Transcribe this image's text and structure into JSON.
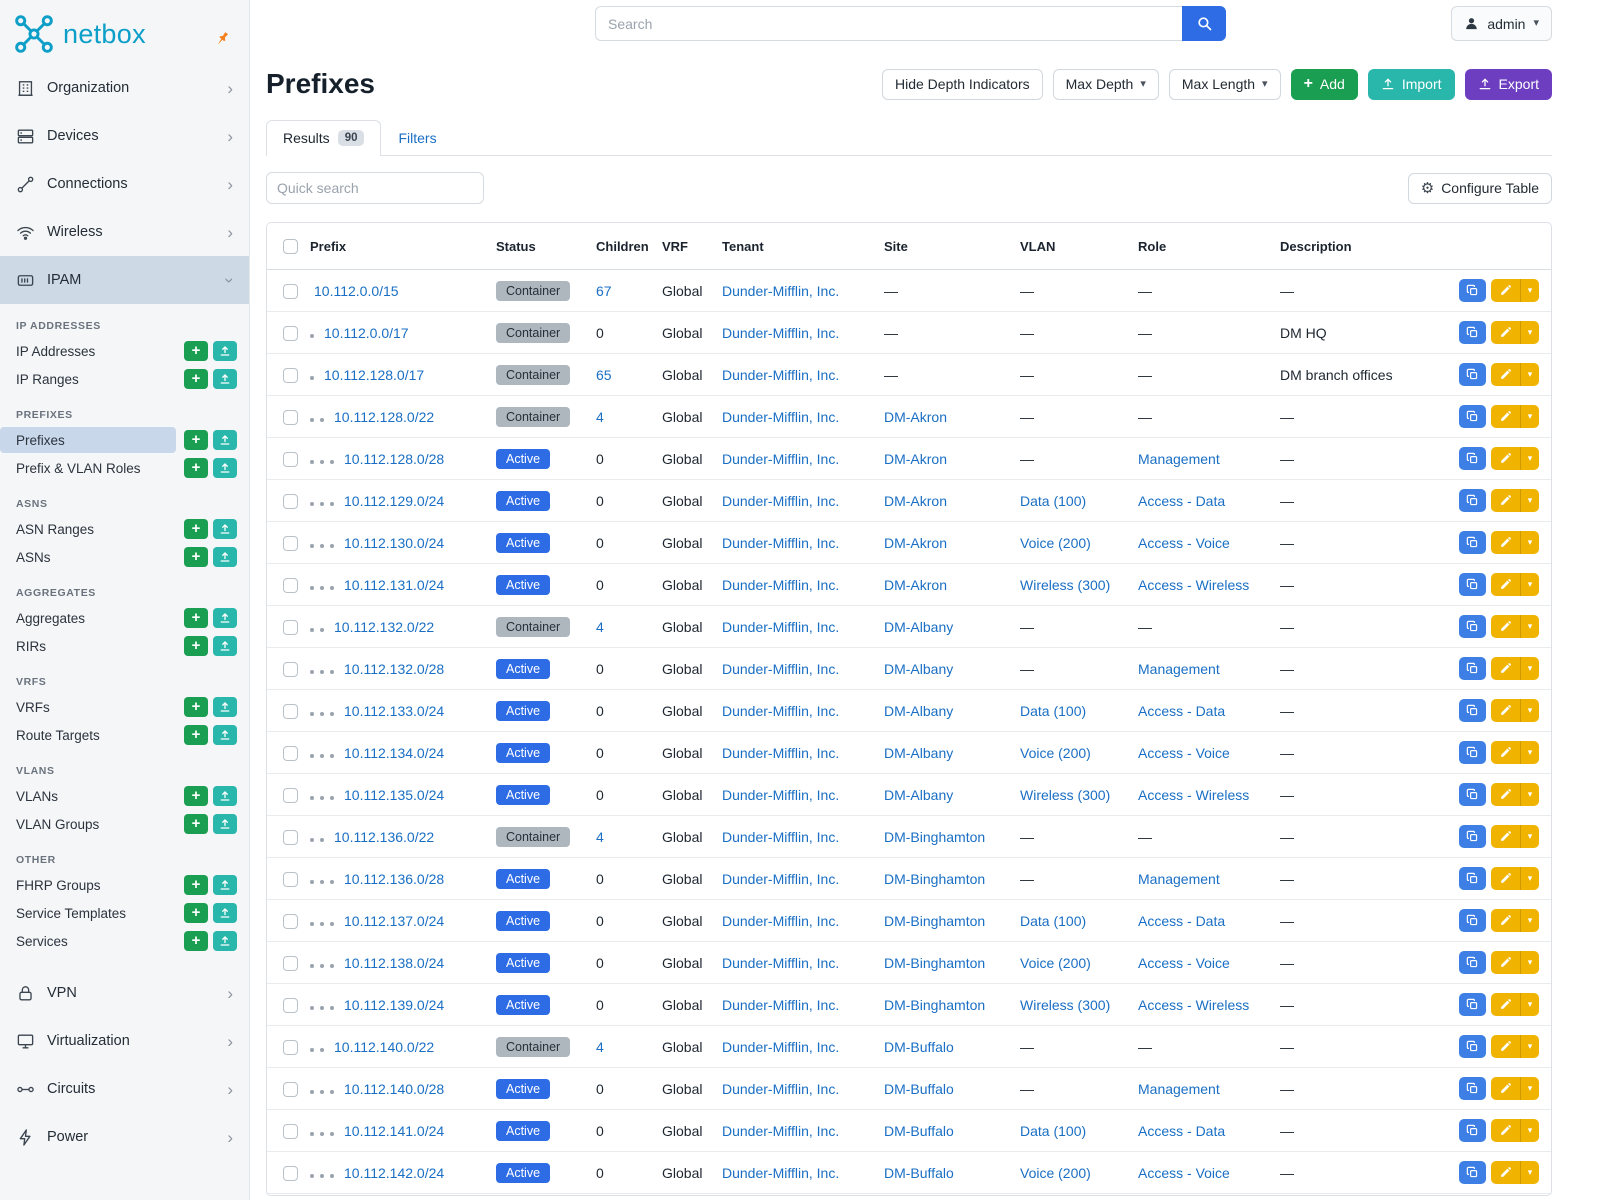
{
  "icons": {
    "caret-down-icon": "▾",
    "chevron-right-icon": "›",
    "plus-icon": "+",
    "gear-icon": "⚙",
    "search-icon": "svg-magnifier",
    "user-icon": "svg-person",
    "pin-icon": "svg-pushpin",
    "upload-icon": "svg-upload-arrow",
    "copy-icon": "svg-copy-squares",
    "edit-icon": "svg-pencil",
    "netbox-logo-icon": "svg-network-nodes"
  },
  "colors": {
    "brand_teal": "#0e9fc9",
    "primary_blue": "#2d6ce5",
    "link_blue": "#1a6fc4",
    "container_badge_gray": "#aeb6be",
    "active_badge_blue": "#2d6ce5",
    "add_green": "#1a9e52",
    "import_teal": "#29b6ab",
    "export_purple": "#6d3fc0",
    "edit_yellow": "#f0b400",
    "sidebar_highlight": "#cdd9e5",
    "pin_orange": "#f48120"
  },
  "topbar": {
    "search_placeholder": "Search",
    "user_label": "admin"
  },
  "sidebar": {
    "brand": "netbox",
    "menu": [
      {
        "label": "Organization",
        "icon": "building-icon"
      },
      {
        "label": "Devices",
        "icon": "devices-icon"
      },
      {
        "label": "Connections",
        "icon": "connections-icon"
      },
      {
        "label": "Wireless",
        "icon": "wifi-icon"
      },
      {
        "label": "IPAM",
        "icon": "ipam-icon",
        "active": true,
        "expanded": true
      }
    ],
    "ipam_sections": [
      {
        "heading": "IP ADDRESSES",
        "links": [
          {
            "label": "IP Addresses"
          },
          {
            "label": "IP Ranges"
          }
        ]
      },
      {
        "heading": "PREFIXES",
        "links": [
          {
            "label": "Prefixes",
            "active": true
          },
          {
            "label": "Prefix & VLAN Roles"
          }
        ]
      },
      {
        "heading": "ASNS",
        "links": [
          {
            "label": "ASN Ranges"
          },
          {
            "label": "ASNs"
          }
        ]
      },
      {
        "heading": "AGGREGATES",
        "links": [
          {
            "label": "Aggregates"
          },
          {
            "label": "RIRs"
          }
        ]
      },
      {
        "heading": "VRFS",
        "links": [
          {
            "label": "VRFs"
          },
          {
            "label": "Route Targets"
          }
        ]
      },
      {
        "heading": "VLANS",
        "links": [
          {
            "label": "VLANs"
          },
          {
            "label": "VLAN Groups"
          }
        ]
      },
      {
        "heading": "OTHER",
        "links": [
          {
            "label": "FHRP Groups"
          },
          {
            "label": "Service Templates"
          },
          {
            "label": "Services"
          }
        ]
      }
    ],
    "menu_bottom": [
      {
        "label": "VPN",
        "icon": "vpn-icon"
      },
      {
        "label": "Virtualization",
        "icon": "virtualization-icon"
      },
      {
        "label": "Circuits",
        "icon": "circuits-icon"
      },
      {
        "label": "Power",
        "icon": "power-icon"
      }
    ]
  },
  "page": {
    "title": "Prefixes",
    "actions": {
      "hide_depth": "Hide Depth Indicators",
      "max_depth": "Max Depth",
      "max_length": "Max Length",
      "add": "Add",
      "import": "Import",
      "export": "Export"
    },
    "tabs": [
      {
        "label": "Results",
        "badge": "90",
        "active": true
      },
      {
        "label": "Filters",
        "active": false
      }
    ],
    "quick_search_placeholder": "Quick search",
    "configure_table": "Configure Table"
  },
  "table": {
    "columns": [
      "Prefix",
      "Status",
      "Children",
      "VRF",
      "Tenant",
      "Site",
      "VLAN",
      "Role",
      "Description"
    ],
    "rows": [
      {
        "depth": 0,
        "prefix": "10.112.0.0/15",
        "status": "Container",
        "children": "67",
        "vrf": "Global",
        "tenant": "Dunder-Mifflin, Inc.",
        "site": "—",
        "vlan": "—",
        "role": "—",
        "description": "—"
      },
      {
        "depth": 1,
        "prefix": "10.112.0.0/17",
        "status": "Container",
        "children": "0",
        "vrf": "Global",
        "tenant": "Dunder-Mifflin, Inc.",
        "site": "—",
        "vlan": "—",
        "role": "—",
        "description": "DM HQ"
      },
      {
        "depth": 1,
        "prefix": "10.112.128.0/17",
        "status": "Container",
        "children": "65",
        "vrf": "Global",
        "tenant": "Dunder-Mifflin, Inc.",
        "site": "—",
        "vlan": "—",
        "role": "—",
        "description": "DM branch offices"
      },
      {
        "depth": 2,
        "prefix": "10.112.128.0/22",
        "status": "Container",
        "children": "4",
        "vrf": "Global",
        "tenant": "Dunder-Mifflin, Inc.",
        "site": "DM-Akron",
        "vlan": "—",
        "role": "—",
        "description": "—"
      },
      {
        "depth": 3,
        "prefix": "10.112.128.0/28",
        "status": "Active",
        "children": "0",
        "vrf": "Global",
        "tenant": "Dunder-Mifflin, Inc.",
        "site": "DM-Akron",
        "vlan": "—",
        "role": "Management",
        "description": "—"
      },
      {
        "depth": 3,
        "prefix": "10.112.129.0/24",
        "status": "Active",
        "children": "0",
        "vrf": "Global",
        "tenant": "Dunder-Mifflin, Inc.",
        "site": "DM-Akron",
        "vlan": "Data (100)",
        "role": "Access - Data",
        "description": "—"
      },
      {
        "depth": 3,
        "prefix": "10.112.130.0/24",
        "status": "Active",
        "children": "0",
        "vrf": "Global",
        "tenant": "Dunder-Mifflin, Inc.",
        "site": "DM-Akron",
        "vlan": "Voice (200)",
        "role": "Access - Voice",
        "description": "—"
      },
      {
        "depth": 3,
        "prefix": "10.112.131.0/24",
        "status": "Active",
        "children": "0",
        "vrf": "Global",
        "tenant": "Dunder-Mifflin, Inc.",
        "site": "DM-Akron",
        "vlan": "Wireless (300)",
        "role": "Access - Wireless",
        "description": "—"
      },
      {
        "depth": 2,
        "prefix": "10.112.132.0/22",
        "status": "Container",
        "children": "4",
        "vrf": "Global",
        "tenant": "Dunder-Mifflin, Inc.",
        "site": "DM-Albany",
        "vlan": "—",
        "role": "—",
        "description": "—"
      },
      {
        "depth": 3,
        "prefix": "10.112.132.0/28",
        "status": "Active",
        "children": "0",
        "vrf": "Global",
        "tenant": "Dunder-Mifflin, Inc.",
        "site": "DM-Albany",
        "vlan": "—",
        "role": "Management",
        "description": "—"
      },
      {
        "depth": 3,
        "prefix": "10.112.133.0/24",
        "status": "Active",
        "children": "0",
        "vrf": "Global",
        "tenant": "Dunder-Mifflin, Inc.",
        "site": "DM-Albany",
        "vlan": "Data (100)",
        "role": "Access - Data",
        "description": "—"
      },
      {
        "depth": 3,
        "prefix": "10.112.134.0/24",
        "status": "Active",
        "children": "0",
        "vrf": "Global",
        "tenant": "Dunder-Mifflin, Inc.",
        "site": "DM-Albany",
        "vlan": "Voice (200)",
        "role": "Access - Voice",
        "description": "—"
      },
      {
        "depth": 3,
        "prefix": "10.112.135.0/24",
        "status": "Active",
        "children": "0",
        "vrf": "Global",
        "tenant": "Dunder-Mifflin, Inc.",
        "site": "DM-Albany",
        "vlan": "Wireless (300)",
        "role": "Access - Wireless",
        "description": "—"
      },
      {
        "depth": 2,
        "prefix": "10.112.136.0/22",
        "status": "Container",
        "children": "4",
        "vrf": "Global",
        "tenant": "Dunder-Mifflin, Inc.",
        "site": "DM-Binghamton",
        "vlan": "—",
        "role": "—",
        "description": "—"
      },
      {
        "depth": 3,
        "prefix": "10.112.136.0/28",
        "status": "Active",
        "children": "0",
        "vrf": "Global",
        "tenant": "Dunder-Mifflin, Inc.",
        "site": "DM-Binghamton",
        "vlan": "—",
        "role": "Management",
        "description": "—"
      },
      {
        "depth": 3,
        "prefix": "10.112.137.0/24",
        "status": "Active",
        "children": "0",
        "vrf": "Global",
        "tenant": "Dunder-Mifflin, Inc.",
        "site": "DM-Binghamton",
        "vlan": "Data (100)",
        "role": "Access - Data",
        "description": "—"
      },
      {
        "depth": 3,
        "prefix": "10.112.138.0/24",
        "status": "Active",
        "children": "0",
        "vrf": "Global",
        "tenant": "Dunder-Mifflin, Inc.",
        "site": "DM-Binghamton",
        "vlan": "Voice (200)",
        "role": "Access - Voice",
        "description": "—"
      },
      {
        "depth": 3,
        "prefix": "10.112.139.0/24",
        "status": "Active",
        "children": "0",
        "vrf": "Global",
        "tenant": "Dunder-Mifflin, Inc.",
        "site": "DM-Binghamton",
        "vlan": "Wireless (300)",
        "role": "Access - Wireless",
        "description": "—"
      },
      {
        "depth": 2,
        "prefix": "10.112.140.0/22",
        "status": "Container",
        "children": "4",
        "vrf": "Global",
        "tenant": "Dunder-Mifflin, Inc.",
        "site": "DM-Buffalo",
        "vlan": "—",
        "role": "—",
        "description": "—"
      },
      {
        "depth": 3,
        "prefix": "10.112.140.0/28",
        "status": "Active",
        "children": "0",
        "vrf": "Global",
        "tenant": "Dunder-Mifflin, Inc.",
        "site": "DM-Buffalo",
        "vlan": "—",
        "role": "Management",
        "description": "—"
      },
      {
        "depth": 3,
        "prefix": "10.112.141.0/24",
        "status": "Active",
        "children": "0",
        "vrf": "Global",
        "tenant": "Dunder-Mifflin, Inc.",
        "site": "DM-Buffalo",
        "vlan": "Data (100)",
        "role": "Access - Data",
        "description": "—"
      },
      {
        "depth": 3,
        "prefix": "10.112.142.0/24",
        "status": "Active",
        "children": "0",
        "vrf": "Global",
        "tenant": "Dunder-Mifflin, Inc.",
        "site": "DM-Buffalo",
        "vlan": "Voice (200)",
        "role": "Access - Voice",
        "description": "—"
      }
    ]
  }
}
